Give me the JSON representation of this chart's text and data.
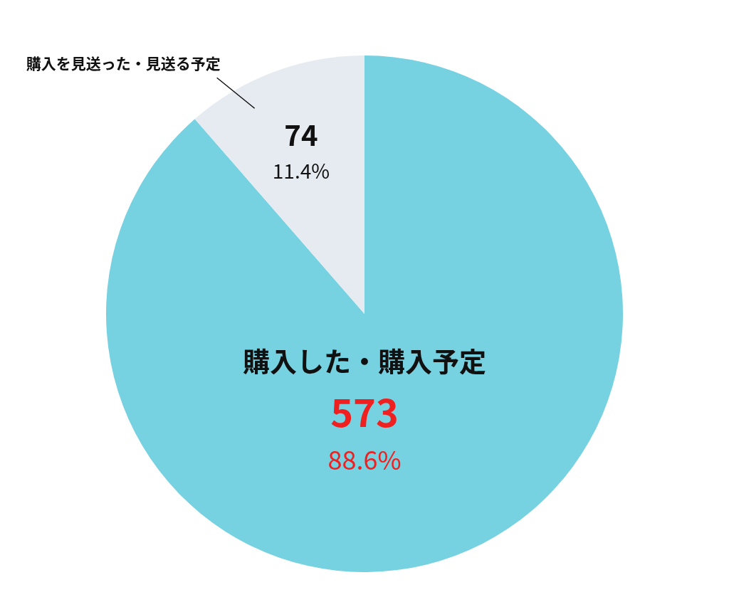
{
  "chart_data": {
    "type": "pie",
    "categories": [
      "購入した・購入予定",
      "購入を見送った・見送る予定"
    ],
    "values": [
      88.6,
      11.4
    ],
    "colors": [
      "#76d1e0",
      "#e5ebf1"
    ],
    "value_labels": [
      "88.6%",
      "11.4%"
    ],
    "annotations": [
      {
        "text": "573",
        "x": "購入した・購入予定"
      },
      {
        "text": "74",
        "x": "購入を見送った・見送る予定"
      }
    ]
  }
}
